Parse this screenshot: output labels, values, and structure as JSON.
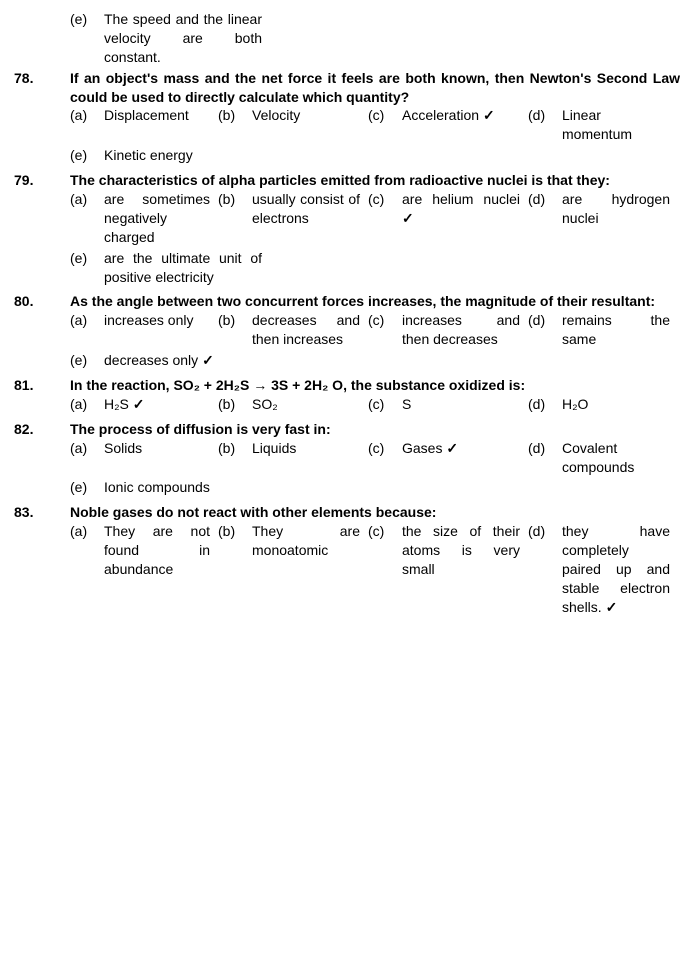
{
  "font_size_pt": 14,
  "text_color": "#000000",
  "background_color": "#ffffff",
  "checkmark": "✓",
  "prev_e": {
    "letter": "(e)",
    "text": "The speed and the linear velocity are both constant."
  },
  "questions": [
    {
      "num": "78.",
      "text": "If an object's mass and the net force it feels are both known, then Newton's Second Law could be used to directly calculate which quantity?",
      "opts": {
        "a": {
          "l": "(a)",
          "t": "Displacement",
          "c": false
        },
        "b": {
          "l": "(b)",
          "t": "Velocity",
          "c": false
        },
        "c": {
          "l": "(c)",
          "t": "Acceleration",
          "c": true
        },
        "d": {
          "l": "(d)",
          "t": "Linear momentum",
          "c": false
        },
        "e": {
          "l": "(e)",
          "t": "Kinetic energy",
          "c": false
        }
      }
    },
    {
      "num": "79.",
      "text": "The characteristics of alpha particles emitted from radioactive nuclei is that they:",
      "opts": {
        "a": {
          "l": "(a)",
          "t": "are sometimes negatively charged",
          "c": false
        },
        "b": {
          "l": "(b)",
          "t": "usually consist of electrons",
          "c": false
        },
        "c": {
          "l": "(c)",
          "t": "are helium nuclei",
          "c": true
        },
        "d": {
          "l": "(d)",
          "t": "are hydrogen nuclei",
          "c": false
        },
        "e": {
          "l": "(e)",
          "t": "are the ultimate unit of positive electricity",
          "c": false
        }
      }
    },
    {
      "num": "80.",
      "text": "As the angle between two concurrent forces increases, the magnitude of their resultant:",
      "opts": {
        "a": {
          "l": "(a)",
          "t": "increases only",
          "c": false
        },
        "b": {
          "l": "(b)",
          "t": "decreases and then increases",
          "c": false
        },
        "c": {
          "l": "(c)",
          "t": "increases and then decreases",
          "c": false
        },
        "d": {
          "l": "(d)",
          "t": "remains the same",
          "c": false
        },
        "e": {
          "l": "(e)",
          "t": "decreases only",
          "c": true
        }
      }
    },
    {
      "num": "81.",
      "text": "In the reaction, SO₂ + 2H₂S → 3S + 2H₂ O, the substance oxidized is:",
      "opts": {
        "a": {
          "l": "(a)",
          "t": "H₂S",
          "c": true
        },
        "b": {
          "l": "(b)",
          "t": "SO₂",
          "c": false
        },
        "c": {
          "l": "(c)",
          "t": "S",
          "c": false
        },
        "d": {
          "l": "(d)",
          "t": "H₂O",
          "c": false
        }
      }
    },
    {
      "num": "82.",
      "text": "The process of diffusion is very fast in:",
      "opts": {
        "a": {
          "l": "(a)",
          "t": "Solids",
          "c": false
        },
        "b": {
          "l": "(b)",
          "t": "Liquids",
          "c": false
        },
        "c": {
          "l": "(c)",
          "t": "Gases",
          "c": true
        },
        "d": {
          "l": "(d)",
          "t": "Covalent compounds",
          "c": false
        },
        "e": {
          "l": "(e)",
          "t": "Ionic compounds",
          "c": false
        }
      }
    },
    {
      "num": "83.",
      "text": "Noble gases do not react with other elements because:",
      "opts": {
        "a": {
          "l": "(a)",
          "t": "They are not found in abundance",
          "c": false
        },
        "b": {
          "l": "(b)",
          "t": "They are monoatomic",
          "c": false
        },
        "c": {
          "l": "(c)",
          "t": "the size of their atoms is very small",
          "c": false
        },
        "d": {
          "l": "(d)",
          "t": "they have completely paired up and stable electron shells.",
          "c": true
        }
      }
    }
  ]
}
